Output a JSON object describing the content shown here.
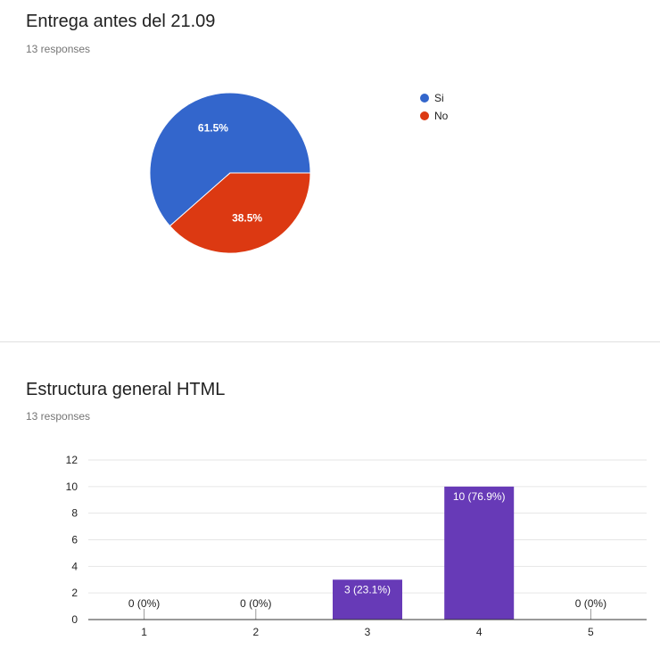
{
  "questions": [
    {
      "title": "Entrega antes del 21.09",
      "responses": "13 responses"
    },
    {
      "title": "Estructura general HTML",
      "responses": "13 responses"
    }
  ],
  "chart_data": [
    {
      "type": "pie",
      "title": "Entrega antes del 21.09",
      "legend_position": "right",
      "slices": [
        {
          "label": "Si",
          "value": 61.5,
          "display": "61.5%",
          "color": "#3366cc"
        },
        {
          "label": "No",
          "value": 38.5,
          "display": "38.5%",
          "color": "#dc3912"
        }
      ]
    },
    {
      "type": "bar",
      "title": "Estructura general HTML",
      "categories": [
        "1",
        "2",
        "3",
        "4",
        "5"
      ],
      "values": [
        0,
        0,
        3,
        10,
        0
      ],
      "data_labels": [
        "0 (0%)",
        "0 (0%)",
        "3 (23.1%)",
        "10 (76.9%)",
        "0 (0%)"
      ],
      "y_ticks": [
        "0",
        "2",
        "4",
        "6",
        "8",
        "10",
        "12"
      ],
      "ylim": [
        0,
        12
      ],
      "grid": true,
      "bar_color": "#673ab7"
    }
  ]
}
